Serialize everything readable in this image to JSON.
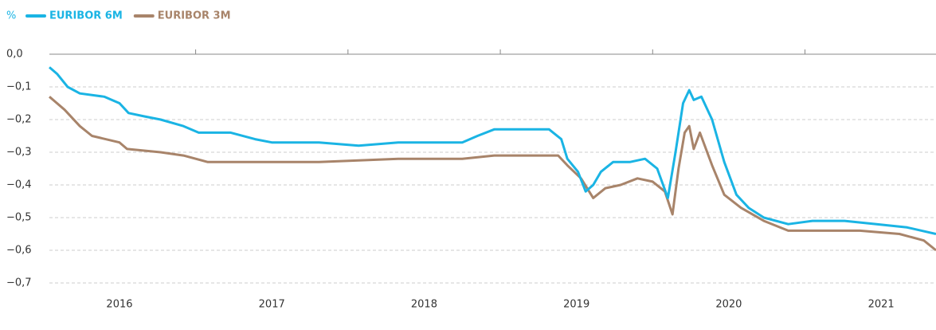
{
  "chart_data": {
    "type": "line",
    "y_unit": "%",
    "xlim": [
      2016.04,
      2021.86
    ],
    "xticks": [
      2016,
      2017,
      2018,
      2019,
      2020,
      2021
    ],
    "ylim": [
      -0.7,
      0
    ],
    "yticks": [
      {
        "value": 0,
        "label": "0,0"
      },
      {
        "value": -0.1,
        "label": "−0,1"
      },
      {
        "value": -0.2,
        "label": "−0,2"
      },
      {
        "value": -0.3,
        "label": "−0,3"
      },
      {
        "value": -0.4,
        "label": "−0,4"
      },
      {
        "value": -0.5,
        "label": "−0,5"
      },
      {
        "value": -0.6,
        "label": "−0,6"
      },
      {
        "value": -0.7,
        "label": "−0,7"
      }
    ],
    "grid": true,
    "series": [
      {
        "name": "EURIBOR 6M",
        "color": "#1ab4e4",
        "x": [
          2016.04,
          2016.09,
          2016.16,
          2016.24,
          2016.4,
          2016.5,
          2016.56,
          2016.66,
          2016.77,
          2016.92,
          2017.02,
          2017.23,
          2017.39,
          2017.5,
          2017.81,
          2018.07,
          2018.33,
          2018.75,
          2018.85,
          2018.96,
          2019.32,
          2019.4,
          2019.44,
          2019.51,
          2019.56,
          2019.61,
          2019.66,
          2019.74,
          2019.85,
          2019.95,
          2020.03,
          2020.1,
          2020.15,
          2020.2,
          2020.24,
          2020.27,
          2020.32,
          2020.39,
          2020.47,
          2020.55,
          2020.63,
          2020.73,
          2020.89,
          2021.05,
          2021.26,
          2021.47,
          2021.67,
          2021.86
        ],
        "values": [
          -0.04,
          -0.06,
          -0.1,
          -0.12,
          -0.13,
          -0.15,
          -0.18,
          -0.19,
          -0.2,
          -0.22,
          -0.24,
          -0.24,
          -0.26,
          -0.27,
          -0.27,
          -0.28,
          -0.27,
          -0.27,
          -0.25,
          -0.23,
          -0.23,
          -0.26,
          -0.32,
          -0.36,
          -0.42,
          -0.4,
          -0.36,
          -0.33,
          -0.33,
          -0.32,
          -0.35,
          -0.44,
          -0.3,
          -0.15,
          -0.11,
          -0.14,
          -0.13,
          -0.2,
          -0.33,
          -0.43,
          -0.47,
          -0.5,
          -0.52,
          -0.51,
          -0.51,
          -0.52,
          -0.53,
          -0.55
        ]
      },
      {
        "name": "EURIBOR 3M",
        "color": "#a8846a",
        "x": [
          2016.04,
          2016.14,
          2016.24,
          2016.32,
          2016.5,
          2016.55,
          2016.77,
          2016.92,
          2017.08,
          2017.81,
          2018.33,
          2018.75,
          2018.96,
          2019.38,
          2019.44,
          2019.53,
          2019.61,
          2019.69,
          2019.79,
          2019.9,
          2020.0,
          2020.08,
          2020.13,
          2020.17,
          2020.21,
          2020.24,
          2020.27,
          2020.31,
          2020.39,
          2020.47,
          2020.58,
          2020.73,
          2020.89,
          2021.1,
          2021.36,
          2021.62,
          2021.78,
          2021.86
        ],
        "values": [
          -0.13,
          -0.17,
          -0.22,
          -0.25,
          -0.27,
          -0.29,
          -0.3,
          -0.31,
          -0.33,
          -0.33,
          -0.32,
          -0.32,
          -0.31,
          -0.31,
          -0.34,
          -0.38,
          -0.44,
          -0.41,
          -0.4,
          -0.38,
          -0.39,
          -0.42,
          -0.49,
          -0.35,
          -0.24,
          -0.22,
          -0.29,
          -0.24,
          -0.34,
          -0.43,
          -0.47,
          -0.51,
          -0.54,
          -0.54,
          -0.54,
          -0.55,
          -0.57,
          -0.6
        ]
      }
    ]
  }
}
